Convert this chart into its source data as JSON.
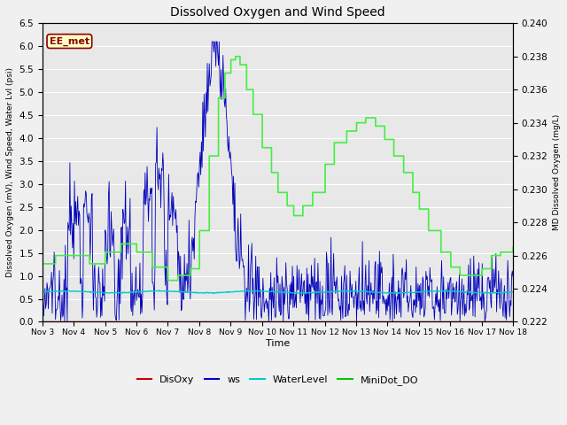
{
  "title": "Dissolved Oxygen and Wind Speed",
  "ylabel_left": "Dissolved Oxygen (mV), Wind Speed, Water Lvl (psi)",
  "ylabel_right": "MD Dissolved Oxygen (mg/L)",
  "xlabel": "Time",
  "ylim_left": [
    0.0,
    6.5
  ],
  "ylim_right": [
    0.222,
    0.24
  ],
  "yticks_left": [
    0.0,
    0.5,
    1.0,
    1.5,
    2.0,
    2.5,
    3.0,
    3.5,
    4.0,
    4.5,
    5.0,
    5.5,
    6.0,
    6.5
  ],
  "yticks_right": [
    0.222,
    0.224,
    0.226,
    0.228,
    0.23,
    0.232,
    0.234,
    0.236,
    0.238,
    0.24
  ],
  "plot_bg_color": "#e8e8e8",
  "fig_bg_color": "#f0f0f0",
  "annotation_text": "EE_met",
  "annotation_bg": "#ffffc8",
  "annotation_edge": "#8b0000",
  "legend_entries": [
    "DisOxy",
    "ws",
    "WaterLevel",
    "MiniDot_DO"
  ],
  "legend_colors": [
    "#cc0000",
    "#0000cc",
    "#00cccc",
    "#00cc00"
  ],
  "disoxy_color": "#cc0000",
  "ws_color": "#0000bb",
  "waterlevel_color": "#00cccc",
  "minidot_color": "#44ee44",
  "x_tick_labels": [
    "Nov 3",
    "Nov 4",
    "Nov 5",
    "Nov 6",
    "Nov 7",
    "Nov 8",
    "Nov 9",
    "Nov 10",
    "Nov 11",
    "Nov 12",
    "Nov 13",
    "Nov 14",
    "Nov 15",
    "Nov 16",
    "Nov 17",
    "Nov 18"
  ],
  "minidot_days": [
    0.0,
    0.4,
    1.0,
    1.5,
    2.0,
    2.5,
    3.0,
    3.5,
    4.0,
    4.3,
    4.7,
    5.0,
    5.3,
    5.6,
    5.8,
    6.0,
    6.15,
    6.3,
    6.5,
    6.7,
    7.0,
    7.3,
    7.5,
    7.8,
    8.0,
    8.3,
    8.6,
    9.0,
    9.3,
    9.7,
    10.0,
    10.3,
    10.6,
    10.9,
    11.2,
    11.5,
    11.8,
    12.0,
    12.3,
    12.7,
    13.0,
    13.3,
    13.6,
    14.0,
    14.3,
    14.6,
    15.0
  ],
  "minidot_vals": [
    0.2255,
    0.226,
    0.226,
    0.2255,
    0.2262,
    0.2267,
    0.2262,
    0.2253,
    0.2245,
    0.2248,
    0.2252,
    0.2275,
    0.232,
    0.2355,
    0.237,
    0.2378,
    0.238,
    0.2375,
    0.236,
    0.2345,
    0.2325,
    0.231,
    0.2298,
    0.229,
    0.2284,
    0.229,
    0.2298,
    0.2315,
    0.2328,
    0.2335,
    0.234,
    0.2343,
    0.2338,
    0.233,
    0.232,
    0.231,
    0.2298,
    0.2288,
    0.2275,
    0.2262,
    0.2253,
    0.2248,
    0.2248,
    0.2252,
    0.226,
    0.2262,
    0.2265
  ],
  "waterlevel_mean": 0.65,
  "waterlevel_amplitude": 0.03
}
